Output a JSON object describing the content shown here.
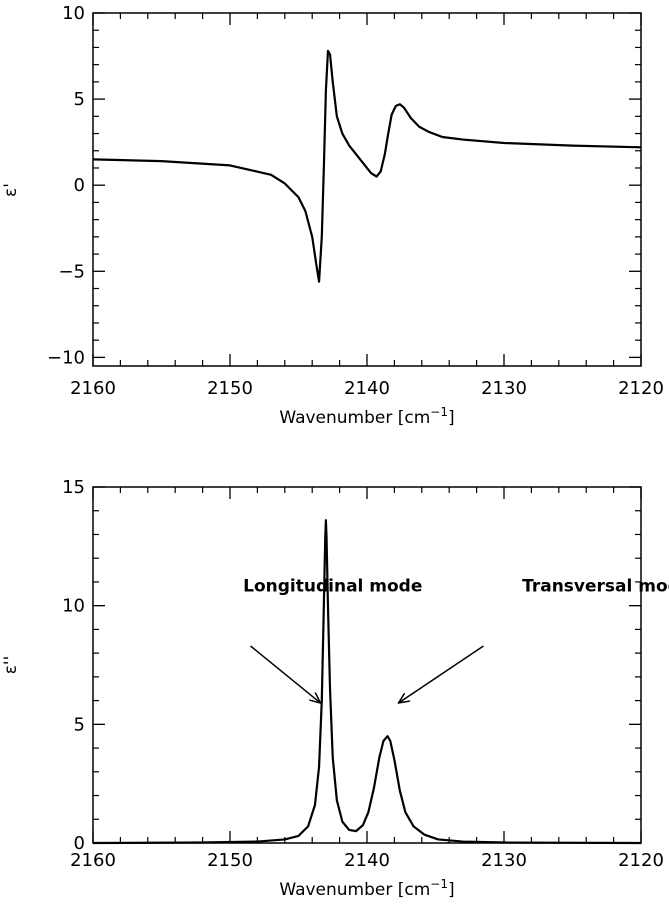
{
  "chart_data": [
    {
      "type": "line",
      "xlabel": "Wavenumber",
      "xlabel_unit_prefix": "cm",
      "xlabel_unit_exp": "−1",
      "ylabel": "ε'",
      "xlim": [
        2160,
        2120
      ],
      "ylim": [
        -10.5,
        10
      ],
      "xticks": [
        2160,
        2150,
        2140,
        2130,
        2120
      ],
      "xtick_labels": [
        "2160",
        "2150",
        "2140",
        "2130",
        "2120"
      ],
      "yticks": [
        -10,
        -5,
        0,
        5,
        10
      ],
      "ytick_labels": [
        "−10",
        "−5",
        "0",
        "5",
        "10"
      ],
      "grid": false,
      "series": [
        {
          "x": [
            2160,
            2155,
            2150,
            2147,
            2146,
            2145,
            2144.5,
            2144,
            2143.7,
            2143.5,
            2143.3,
            2143.15,
            2143.0,
            2142.85,
            2142.7,
            2142.5,
            2142.2,
            2141.8,
            2141.3,
            2140.8,
            2140.2,
            2139.7,
            2139.3,
            2139.0,
            2138.7,
            2138.45,
            2138.2,
            2137.9,
            2137.6,
            2137.3,
            2136.8,
            2136.2,
            2135.5,
            2134.5,
            2133,
            2130,
            2125,
            2120
          ],
          "y": [
            1.5,
            1.4,
            1.15,
            0.6,
            0.1,
            -0.7,
            -1.5,
            -3.0,
            -4.6,
            -5.6,
            -3.0,
            1.0,
            5.5,
            7.8,
            7.6,
            6.0,
            4.0,
            3.0,
            2.3,
            1.8,
            1.2,
            0.7,
            0.5,
            0.8,
            1.8,
            3.0,
            4.1,
            4.6,
            4.7,
            4.5,
            3.9,
            3.4,
            3.1,
            2.8,
            2.65,
            2.45,
            2.3,
            2.2
          ]
        }
      ]
    },
    {
      "type": "line",
      "xlabel": "Wavenumber",
      "xlabel_unit_prefix": "cm",
      "xlabel_unit_exp": "−1",
      "ylabel": "ε''",
      "xlim": [
        2160,
        2120
      ],
      "ylim": [
        0,
        15
      ],
      "xticks": [
        2160,
        2150,
        2140,
        2130,
        2120
      ],
      "xtick_labels": [
        "2160",
        "2150",
        "2140",
        "2130",
        "2120"
      ],
      "yticks": [
        0,
        5,
        10,
        15
      ],
      "ytick_labels": [
        "0",
        "5",
        "10",
        "15"
      ],
      "grid": false,
      "series": [
        {
          "x": [
            2160,
            2152,
            2148,
            2146,
            2145,
            2144.3,
            2143.8,
            2143.5,
            2143.3,
            2143.15,
            2143.05,
            2143.0,
            2142.95,
            2142.85,
            2142.7,
            2142.5,
            2142.2,
            2141.8,
            2141.3,
            2140.8,
            2140.3,
            2139.9,
            2139.5,
            2139.1,
            2138.8,
            2138.5,
            2138.3,
            2138.0,
            2137.6,
            2137.2,
            2136.6,
            2135.8,
            2134.8,
            2133,
            2130,
            2120
          ],
          "y": [
            0.0,
            0.02,
            0.06,
            0.15,
            0.3,
            0.7,
            1.6,
            3.2,
            6.0,
            10.0,
            12.8,
            13.6,
            12.8,
            10.0,
            6.5,
            3.6,
            1.8,
            0.9,
            0.55,
            0.5,
            0.75,
            1.3,
            2.3,
            3.6,
            4.3,
            4.5,
            4.3,
            3.5,
            2.2,
            1.3,
            0.7,
            0.35,
            0.15,
            0.06,
            0.02,
            0.0
          ]
        }
      ],
      "annotations": [
        {
          "text": "Longitudinal mode",
          "text_x": 2142.5,
          "text_y": 10.6,
          "arrow_from": [
            2148.5,
            8.3
          ],
          "arrow_to": [
            2143.4,
            5.9
          ]
        },
        {
          "text": "Transversal mode",
          "text_x": 2122.5,
          "text_y": 10.6,
          "arrow_from": [
            2131.5,
            8.3
          ],
          "arrow_to": [
            2137.7,
            5.9
          ]
        }
      ]
    }
  ]
}
